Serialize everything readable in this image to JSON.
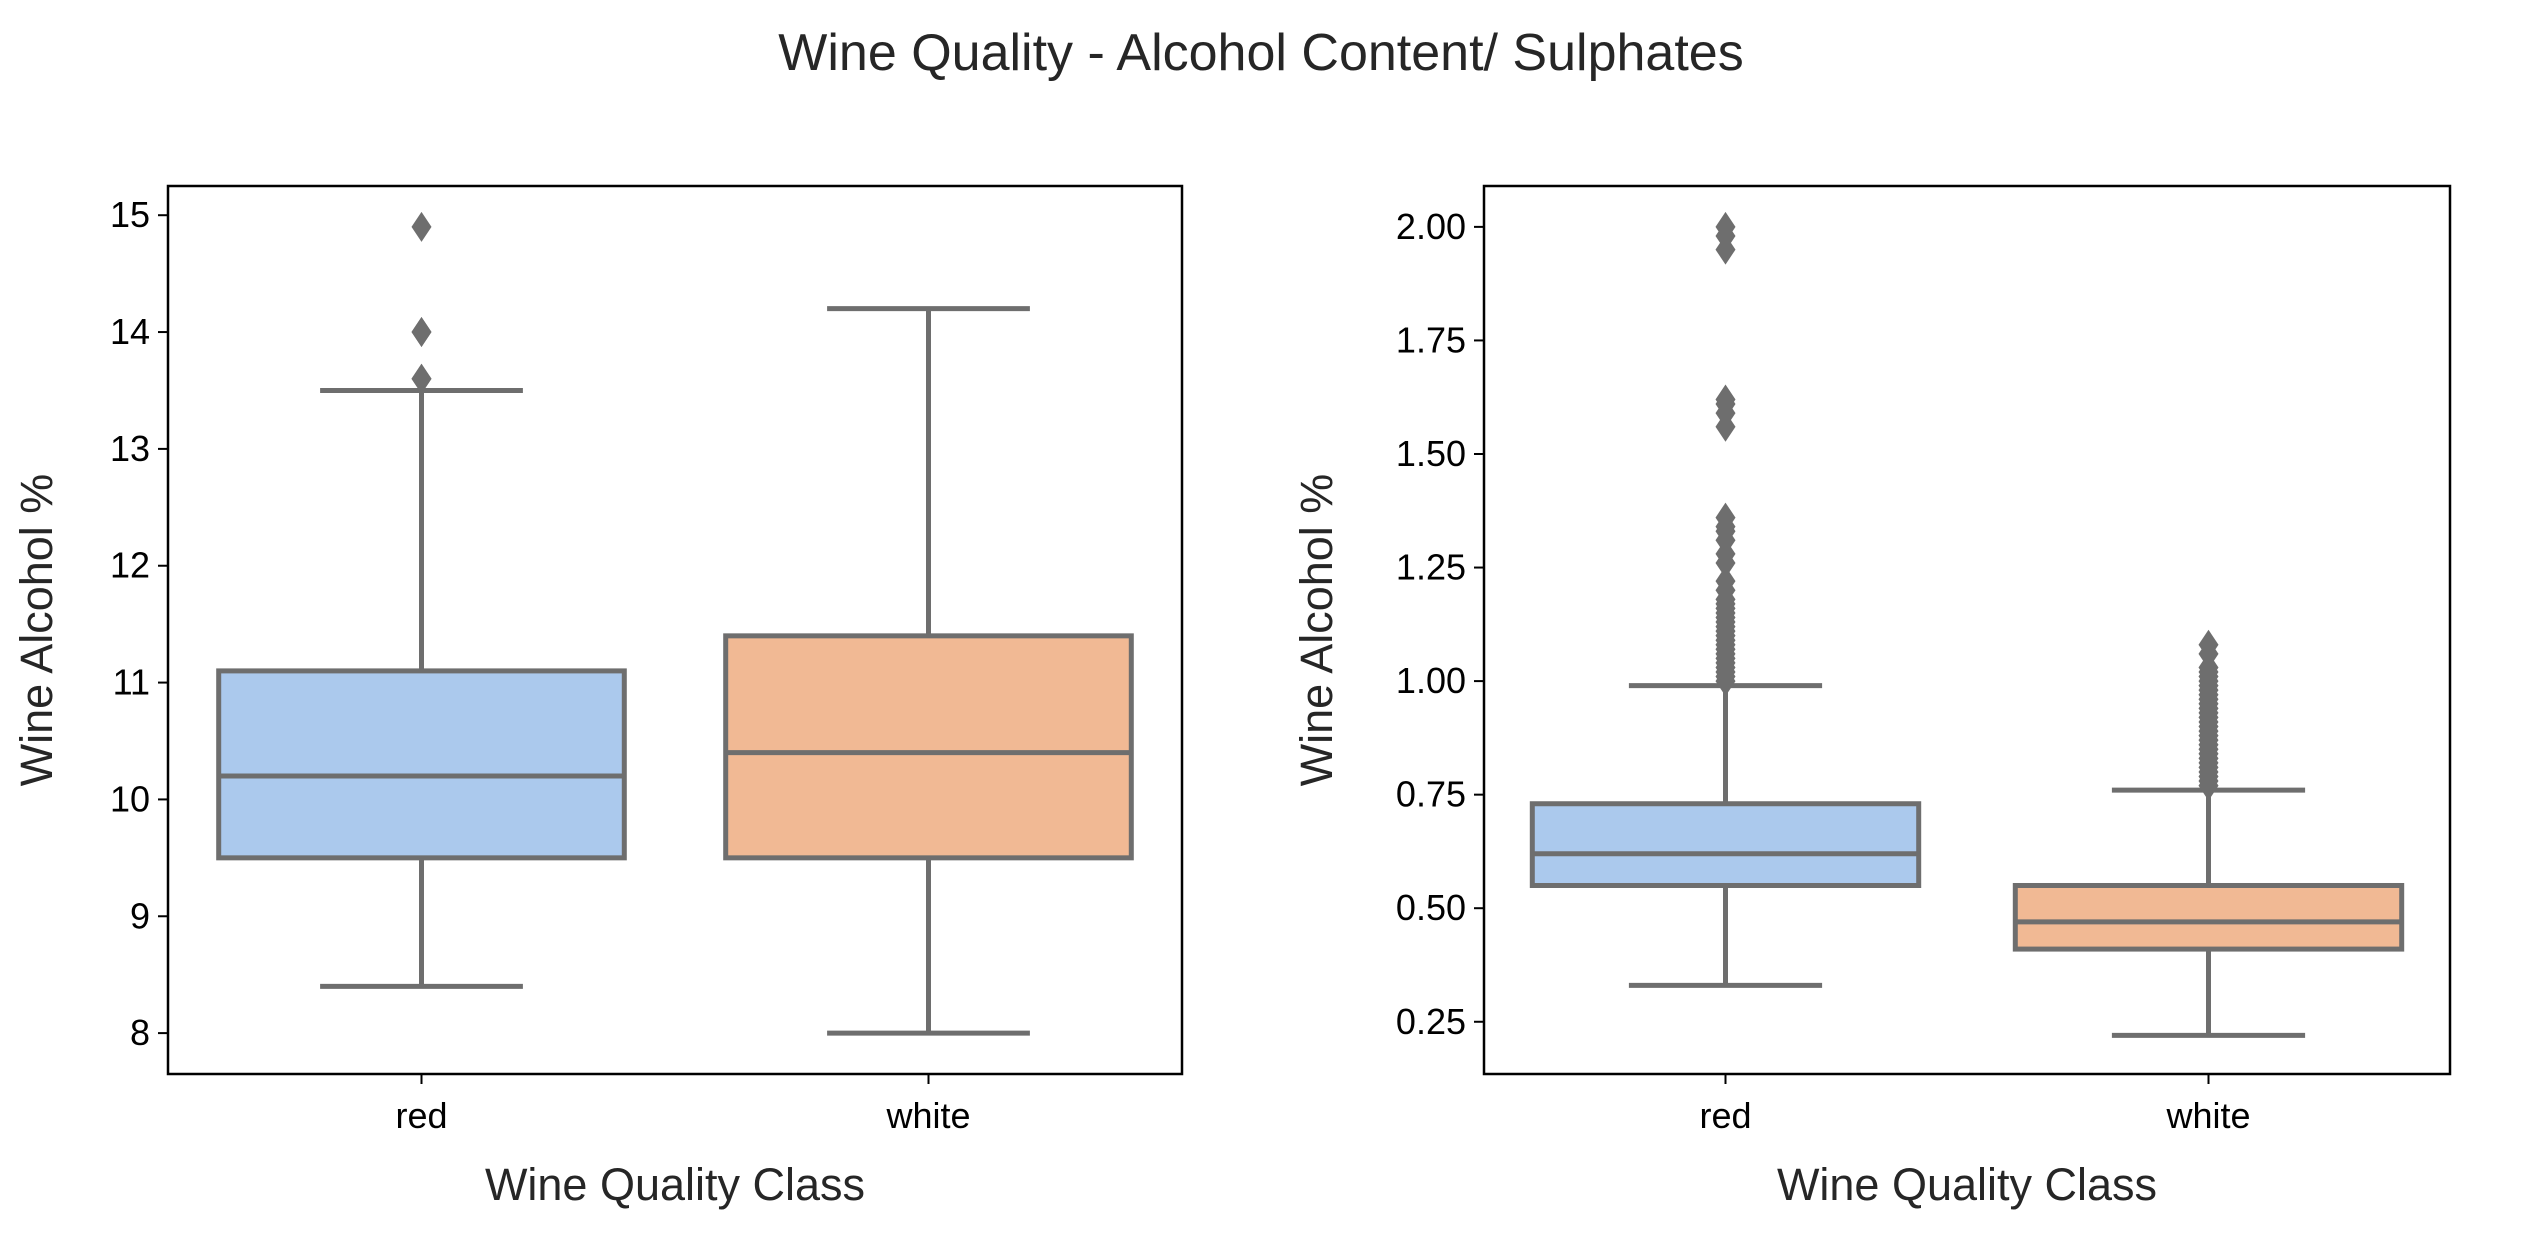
{
  "figure": {
    "title": "Wine Quality - Alcohol Content/ Sulphates"
  },
  "chart_data": [
    {
      "type": "box",
      "title": "",
      "xlabel": "Wine Quality Class",
      "ylabel": "Wine Alcohol %",
      "ylim": [
        7.65,
        15.25
      ],
      "yticks": [
        8,
        9,
        10,
        11,
        12,
        13,
        14,
        15
      ],
      "ytick_labels": [
        "8",
        "9",
        "10",
        "11",
        "12",
        "13",
        "14",
        "15"
      ],
      "categories": [
        "red",
        "white"
      ],
      "colors": [
        "#abc9ed",
        "#f1b994"
      ],
      "boxes": [
        {
          "category": "red",
          "whisker_low": 8.4,
          "q1": 9.5,
          "median": 10.2,
          "q3": 11.1,
          "whisker_high": 13.5,
          "outliers": [
            13.6,
            13.6,
            14.0,
            14.0,
            14.9
          ]
        },
        {
          "category": "white",
          "whisker_low": 8.0,
          "q1": 9.5,
          "median": 10.4,
          "q3": 11.4,
          "whisker_high": 14.2,
          "outliers": []
        }
      ]
    },
    {
      "type": "box",
      "title": "",
      "xlabel": "Wine Quality Class",
      "ylabel": "Wine Alcohol %",
      "ylim": [
        0.135,
        2.09
      ],
      "yticks": [
        0.25,
        0.5,
        0.75,
        1.0,
        1.25,
        1.5,
        1.75,
        2.0
      ],
      "ytick_labels": [
        "0.25",
        "0.50",
        "0.75",
        "1.00",
        "1.25",
        "1.50",
        "1.75",
        "2.00"
      ],
      "categories": [
        "red",
        "white"
      ],
      "colors": [
        "#abc9ed",
        "#f1b994"
      ],
      "boxes": [
        {
          "category": "red",
          "whisker_low": 0.33,
          "q1": 0.55,
          "median": 0.62,
          "q3": 0.73,
          "whisker_high": 0.99,
          "outliers": [
            1.0,
            1.01,
            1.02,
            1.03,
            1.04,
            1.05,
            1.06,
            1.07,
            1.08,
            1.09,
            1.1,
            1.11,
            1.12,
            1.13,
            1.14,
            1.15,
            1.16,
            1.17,
            1.18,
            1.2,
            1.22,
            1.26,
            1.28,
            1.31,
            1.33,
            1.34,
            1.36,
            1.56,
            1.59,
            1.61,
            1.62,
            1.95,
            1.98,
            2.0
          ]
        },
        {
          "category": "white",
          "whisker_low": 0.22,
          "q1": 0.41,
          "median": 0.47,
          "q3": 0.55,
          "whisker_high": 0.76,
          "outliers": [
            0.77,
            0.78,
            0.79,
            0.8,
            0.81,
            0.82,
            0.83,
            0.84,
            0.85,
            0.86,
            0.87,
            0.88,
            0.89,
            0.9,
            0.91,
            0.92,
            0.93,
            0.94,
            0.95,
            0.96,
            0.97,
            0.98,
            0.99,
            1.0,
            1.01,
            1.02,
            1.03,
            1.06,
            1.08
          ]
        }
      ]
    }
  ]
}
